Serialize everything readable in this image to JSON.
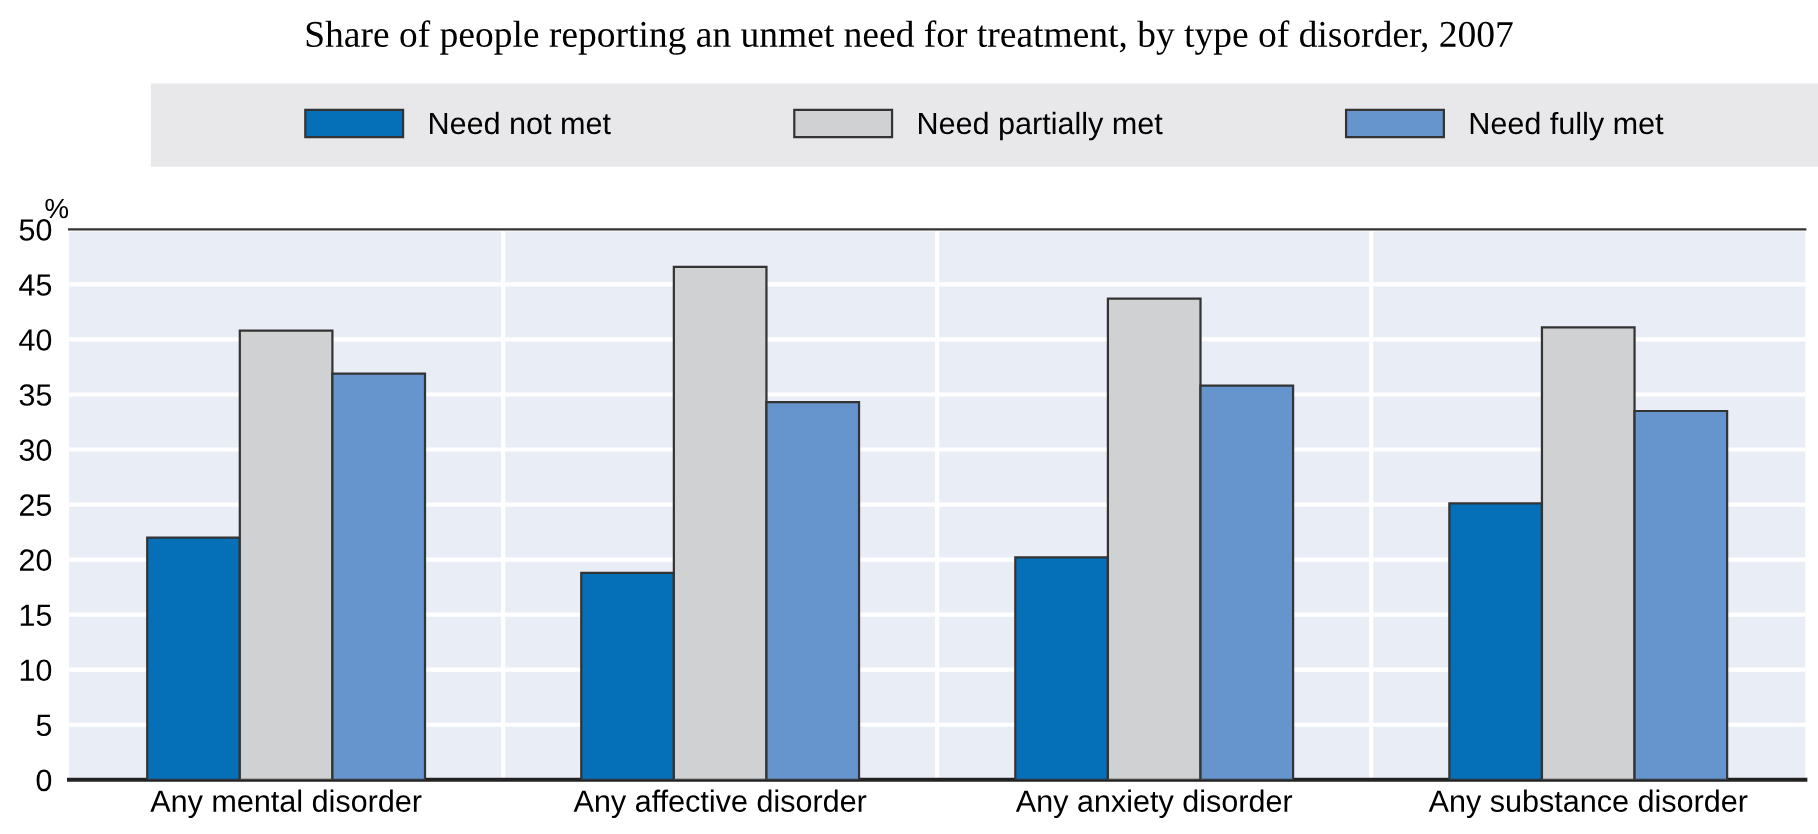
{
  "chart_data": {
    "type": "bar",
    "title": "Share of people reporting an unmet need for treatment, by type of disorder, 2007",
    "ylabel": "%",
    "categories": [
      "Any mental disorder",
      "Any affective disorder",
      "Any anxiety disorder",
      "Any substance disorder"
    ],
    "series": [
      {
        "name": "Need not met",
        "color": "#0570b8",
        "values": [
          22.0,
          18.8,
          20.2,
          25.1
        ]
      },
      {
        "name": "Need partially met",
        "color": "#d0d1d3",
        "values": [
          40.8,
          46.6,
          43.7,
          41.1
        ]
      },
      {
        "name": "Need fully met",
        "color": "#6694cd",
        "values": [
          36.9,
          34.3,
          35.8,
          33.5
        ]
      }
    ],
    "ylim": [
      0,
      50
    ],
    "yticks": [
      0,
      5,
      10,
      15,
      20,
      25,
      30,
      35,
      40,
      45,
      50
    ],
    "grid": true,
    "legend": "top"
  }
}
